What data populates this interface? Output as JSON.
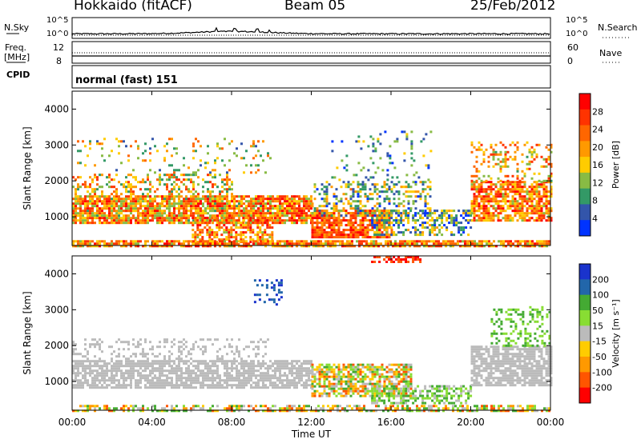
{
  "header": {
    "station": "Hokkaido (fitACF)",
    "beam": "Beam 05",
    "date": "25/Feb/2012"
  },
  "noise_panel": {
    "left_label": "N.Sky",
    "right_label": "N.Search",
    "left_ticks": [
      "10^5",
      "10^0"
    ],
    "right_ticks": [
      "10^5",
      "10^0"
    ]
  },
  "freq_panel": {
    "left_label_1": "Freq.",
    "left_label_2": "[MHz]",
    "right_label": "Nave",
    "left_ticks": [
      "12",
      "8"
    ],
    "right_ticks": [
      "60",
      "0"
    ]
  },
  "cpid_panel": {
    "label": "CPID",
    "mode": "normal (fast) 151"
  },
  "chart_data": [
    {
      "type": "heatmap",
      "name": "power",
      "ylabel": "Slant Range [km]",
      "xlabel": "",
      "y_ticks": [
        "1000",
        "2000",
        "3000",
        "4000"
      ],
      "ylim": [
        200,
        4500
      ],
      "xlim_hours": [
        0,
        24
      ],
      "colorbar_label": "Power [dB]",
      "colorbar_ticks": [
        "28",
        "24",
        "20",
        "16",
        "12",
        "8",
        "4"
      ],
      "colorbar_colors": [
        "#ff0000",
        "#ff3300",
        "#ff6600",
        "#ff9900",
        "#ffcc00",
        "#88bb44",
        "#339966",
        "#3355aa",
        "#0033ff"
      ]
    },
    {
      "type": "heatmap",
      "name": "velocity",
      "ylabel": "Slant Range [km]",
      "xlabel": "Time UT",
      "y_ticks": [
        "1000",
        "2000",
        "3000",
        "4000"
      ],
      "ylim": [
        200,
        4500
      ],
      "xlim_hours": [
        0,
        24
      ],
      "x_ticks": [
        "00:00",
        "04:00",
        "08:00",
        "12:00",
        "16:00",
        "20:00",
        "00:00"
      ],
      "colorbar_label": "Velocity [m s⁻¹]",
      "colorbar_ticks": [
        "200",
        "100",
        "50",
        "15",
        "-15",
        "-50",
        "-100",
        "-200"
      ],
      "colorbar_colors": [
        "#1a33cc",
        "#2266aa",
        "#44aa33",
        "#88dd33",
        "#bbbbbb",
        "#ffcc00",
        "#ff9900",
        "#ff5500",
        "#ff0000"
      ],
      "ground_scatter_color": "#bbbbaa"
    }
  ]
}
